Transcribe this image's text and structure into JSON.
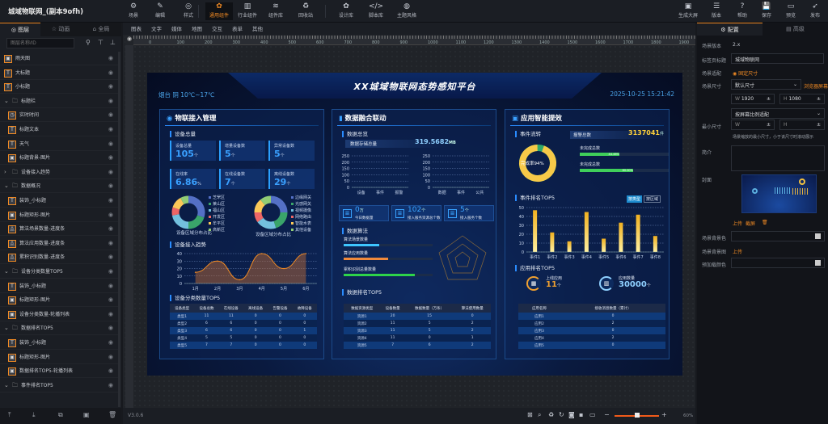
{
  "app": {
    "title": "城域物联网_(副本9ofh)"
  },
  "toolbar": {
    "left": [
      {
        "icon": "scene-icon",
        "glyph": "⚙",
        "label": "场景"
      },
      {
        "icon": "edit-icon",
        "glyph": "✎",
        "label": "编辑"
      },
      {
        "icon": "style-icon",
        "glyph": "◎",
        "label": "样式"
      }
    ],
    "middle": [
      {
        "icon": "component-icon",
        "glyph": "✿",
        "label": "通用组件",
        "active": true
      },
      {
        "icon": "industry-icon",
        "glyph": "▥",
        "label": "行业组件"
      },
      {
        "icon": "library-icon",
        "glyph": "≋",
        "label": "组件库"
      },
      {
        "icon": "recycle-icon",
        "glyph": "♻",
        "label": "回收站"
      }
    ],
    "right_group": [
      {
        "icon": "design-icon",
        "glyph": "✿",
        "label": "设计库"
      },
      {
        "icon": "script-icon",
        "glyph": "</>",
        "label": "脚本库"
      },
      {
        "icon": "theme-icon",
        "glyph": "◍",
        "label": "主题风格"
      }
    ],
    "actions": [
      {
        "icon": "generate-icon",
        "glyph": "▣",
        "label": "生成大屏"
      },
      {
        "icon": "version-icon",
        "glyph": "☰",
        "label": "版本"
      },
      {
        "icon": "help-icon",
        "glyph": "?",
        "label": "帮助"
      },
      {
        "icon": "save-icon",
        "glyph": "💾",
        "label": "保存"
      },
      {
        "icon": "preview-icon",
        "glyph": "▭",
        "label": "预览"
      },
      {
        "icon": "publish-icon",
        "glyph": "➶",
        "label": "发布"
      }
    ]
  },
  "left_panel": {
    "tabs": [
      {
        "label": "◎ 图层",
        "active": true
      },
      {
        "label": "☆ 动画"
      },
      {
        "label": "⌂ 全局"
      }
    ],
    "search_placeholder": "图层名称/ID",
    "layers": [
      {
        "label": "雨天图",
        "type": "image",
        "level": 0
      },
      {
        "label": "大标题",
        "type": "text",
        "level": 0
      },
      {
        "label": "小标题",
        "type": "text",
        "level": 0
      },
      {
        "label": "标题栏",
        "type": "folder",
        "level": 0,
        "expanded": true
      },
      {
        "label": "实时时间",
        "type": "time",
        "level": 1
      },
      {
        "label": "标题文本",
        "type": "text",
        "level": 1
      },
      {
        "label": "天气",
        "type": "text",
        "level": 1
      },
      {
        "label": "标题背景-图片",
        "type": "image",
        "level": 1
      },
      {
        "label": "设备接入趋势",
        "type": "group",
        "level": 0,
        "expanded": false
      },
      {
        "label": "数据概况",
        "type": "folder",
        "level": 0,
        "expanded": true
      },
      {
        "label": "装饰_小标题",
        "type": "text",
        "level": 1
      },
      {
        "label": "标题矩形-图片",
        "type": "image",
        "level": 1
      },
      {
        "label": "算法场景数量-进度条",
        "type": "progress",
        "level": 1
      },
      {
        "label": "算法应用数量-进度条",
        "type": "progress",
        "level": 1
      },
      {
        "label": "累积识别数量-进度条",
        "type": "progress",
        "level": 1
      },
      {
        "label": "设备分类数量TOP5",
        "type": "folder",
        "level": 0,
        "expanded": true
      },
      {
        "label": "装饰_小标题",
        "type": "text",
        "level": 1
      },
      {
        "label": "标题矩形-图片",
        "type": "image",
        "level": 1
      },
      {
        "label": "设备分类数量-轮播列表",
        "type": "image",
        "level": 1
      },
      {
        "label": "数据排名TOP5",
        "type": "folder",
        "level": 0,
        "expanded": true
      },
      {
        "label": "装饰_小标题",
        "type": "text",
        "level": 1
      },
      {
        "label": "标题矩形-图片",
        "type": "image",
        "level": 1
      },
      {
        "label": "数据排名TOP5-轮播列表",
        "type": "image",
        "level": 1
      },
      {
        "label": "事件排名TOP5",
        "type": "folder",
        "level": 0,
        "expanded": true
      }
    ]
  },
  "component_tabs": [
    "图表",
    "文字",
    "媒体",
    "地图",
    "交互",
    "表单",
    "其他"
  ],
  "ruler": {
    "ticks": [
      "0",
      "100",
      "200",
      "300",
      "400",
      "500",
      "600",
      "700",
      "800",
      "900",
      "1000",
      "1100",
      "1200",
      "1300",
      "1400",
      "1500",
      "1600",
      "1700",
      "1800",
      "1900"
    ]
  },
  "status": {
    "version": "V3.0.6",
    "zoom": "60%",
    "zoom_level": 0.5
  },
  "right_panel": {
    "tabs": [
      {
        "label": "⚙ 配置",
        "active": true
      },
      {
        "label": "▤ 高级"
      }
    ],
    "scene_version_label": "场景版本",
    "scene_version": "2.x",
    "tab_title_label": "标签页标题",
    "tab_title": "城域物联网",
    "fit_label": "场景适配",
    "fit_value": "固定尺寸",
    "size_label": "场景尺寸",
    "size_value": "默认尺寸",
    "browser_screen": "浏览器屏幕",
    "width_label": "W",
    "width": "1920",
    "height_label": "H",
    "height": "1080",
    "scale_mode": "按屏幕比例适配",
    "min_size_label": "最小尺寸",
    "min_w_label": "W",
    "min_h_label": "H",
    "min_size_hint": "场景缩放的最小尺寸，小于该尺寸时滚动展示",
    "intro_label": "简介",
    "cover_label": "封面",
    "upload": "上传",
    "screenshot": "截屏",
    "bg_color_label": "场景背景色",
    "bg_image_label": "场景背景图",
    "bg_image_upload": "上传",
    "preload_color_label": "预加载颜色"
  },
  "dashboard": {
    "title": "XX城域物联网态势感知平台",
    "weather": "烟台 阴 10℃~17℃",
    "datetime": "2025-10-25 15:21:42",
    "left": {
      "title": "物联接入管理",
      "overview": "设备总量",
      "cards": [
        {
          "label": "设备总量",
          "value": "105",
          "unit": "个"
        },
        {
          "label": "增量设备数",
          "value": "5",
          "unit": "个"
        },
        {
          "label": "异常设备数",
          "value": "5",
          "unit": "个"
        },
        {
          "label": "在线率",
          "value": "6.86",
          "unit": "%"
        },
        {
          "label": "在线设备数",
          "value": "7",
          "unit": "个"
        },
        {
          "label": "离线设备数",
          "value": "29",
          "unit": "个"
        }
      ],
      "donut1": {
        "caption": "设备区域分布占比",
        "items": [
          {
            "name": "芝罘区",
            "value": 30,
            "color": "#5470c6"
          },
          {
            "name": "莱山区",
            "value": 20,
            "color": "#3aa46a"
          },
          {
            "name": "福山区",
            "value": 22,
            "color": "#73c0de"
          },
          {
            "name": "开发区",
            "value": 8,
            "color": "#ee6666"
          },
          {
            "name": "牟平区",
            "value": 12,
            "color": "#fac858"
          },
          {
            "name": "高新区",
            "value": 8,
            "color": "#91cc75"
          }
        ]
      },
      "donut2": {
        "caption": "设备区域分布占比",
        "items": [
          {
            "name": "边缘网关",
            "value": 25,
            "color": "#5470c6"
          },
          {
            "name": "光感网关",
            "value": 20,
            "color": "#3aa46a"
          },
          {
            "name": "视频摄像",
            "value": 20,
            "color": "#73c0de"
          },
          {
            "name": "网络路由",
            "value": 10,
            "color": "#ee6666"
          },
          {
            "name": "智能水表",
            "value": 14,
            "color": "#fac858"
          },
          {
            "name": "其他设备",
            "value": 11,
            "color": "#91cc75"
          }
        ]
      },
      "trend_title": "设备接入趋势",
      "table_title": "设备分类数量TOP5",
      "table": {
        "headers": [
          "设备类型",
          "设备总数",
          "在线设备",
          "离线设备",
          "告警设备",
          "故障设备"
        ],
        "rows": [
          [
            "类型1",
            "11",
            "11",
            "0",
            "0",
            "0"
          ],
          [
            "类型2",
            "6",
            "6",
            "0",
            "0",
            "0"
          ],
          [
            "类型3",
            "6",
            "6",
            "0",
            "0",
            "1"
          ],
          [
            "类型4",
            "5",
            "5",
            "0",
            "0",
            "0"
          ],
          [
            "类型5",
            "7",
            "7",
            "0",
            "0",
            "0"
          ]
        ]
      }
    },
    "center": {
      "title": "数据融合联动",
      "overview": "数据总览",
      "storage_label": "数据存储总量",
      "storage_value": "319.5682",
      "storage_unit": "MB",
      "stats": [
        {
          "value": "0",
          "unit": "万",
          "label": "今日数据量"
        },
        {
          "value": "102",
          "unit": "个",
          "label": "接入服务资源总个数"
        },
        {
          "value": "5",
          "unit": "个",
          "label": "接入服务个数"
        }
      ],
      "algo_title": "数据算法",
      "algo": [
        {
          "label": "算法场景数量",
          "value": 40,
          "color": "#3ec6ff"
        },
        {
          "label": "算法应用数量",
          "value": 50,
          "color": "#f08a3c"
        },
        {
          "label": "累积识别总量数量",
          "value": 80,
          "color": "#2ed34a"
        }
      ],
      "table_title": "数据排名TOP5",
      "table": {
        "headers": [
          "数据资源类型",
          "设备数量",
          "数据数量（万条）",
          "算法使用数量"
        ],
        "rows": [
          [
            "资源1",
            "20",
            "15",
            "0"
          ],
          [
            "资源2",
            "11",
            "5",
            "2"
          ],
          [
            "资源3",
            "11",
            "5",
            "2"
          ],
          [
            "资源4",
            "11",
            "0",
            "1"
          ],
          [
            "资源5",
            "7",
            "6",
            "2"
          ]
        ]
      }
    },
    "right": {
      "title": "应用智能提效",
      "flow_title": "事件流转",
      "alarm_label": "报警总数",
      "alarm_value": "3137041",
      "alarm_unit": "件",
      "completion_label": "完成率94%",
      "completion": 94,
      "progress": [
        {
          "label": "未完成总数",
          "value": 44.46,
          "text": "44.46%"
        },
        {
          "label": "未完成总数",
          "value": 60.0,
          "text": "60.00%"
        }
      ],
      "rank_title": "事件排名TOP5",
      "rank_tabs": [
        {
          "label": "按类型",
          "active": true
        },
        {
          "label": "按区域"
        }
      ],
      "app_title": "应用排名TOP5",
      "app_stats": [
        {
          "label": "上线应用",
          "value": "11",
          "unit": "个",
          "color": "#f0a030"
        },
        {
          "label": "应用数量",
          "value": "30000",
          "unit": "个",
          "color": "#8fd0ff"
        }
      ],
      "table": {
        "headers": [
          "应用名称",
          "接收消息数量（累计）"
        ],
        "rows": [
          [
            "应用1",
            "0"
          ],
          [
            "应用2",
            "2"
          ],
          [
            "应用3",
            "0"
          ],
          [
            "应用4",
            "2"
          ],
          [
            "应用5",
            "0"
          ]
        ]
      }
    }
  },
  "chart_data": [
    {
      "type": "area",
      "title": "设备接入趋势",
      "categories": [
        "1月",
        "2月",
        "3月",
        "4月",
        "5月",
        "6月"
      ],
      "values": [
        15,
        30,
        5,
        40,
        20,
        40
      ],
      "ylim": [
        0,
        40
      ],
      "yticks": [
        "0",
        "10",
        "20",
        "30",
        "40"
      ],
      "grid": true
    },
    {
      "type": "bar",
      "title": "数据总览",
      "categories": [
        "设备",
        "事件",
        "报警"
      ],
      "values": [
        0,
        0,
        0
      ],
      "ylim": [
        0,
        250
      ],
      "yticks": [
        "0",
        "50",
        "100",
        "150",
        "200",
        "250"
      ],
      "grid": true
    },
    {
      "type": "bar",
      "title": "数据总览",
      "categories": [
        "数据",
        "事件",
        "公共"
      ],
      "values": [
        0,
        0,
        0
      ],
      "ylim": [
        0,
        250
      ],
      "yticks": [
        "0",
        "50",
        "100",
        "150",
        "200",
        "250"
      ],
      "grid": true
    },
    {
      "type": "bar",
      "title": "事件排名TOP5",
      "categories": [
        "事件1",
        "事件2",
        "事件3",
        "事件4",
        "事件5",
        "事件6",
        "事件7",
        "事件8"
      ],
      "values": [
        47,
        22,
        12,
        45,
        15,
        33,
        42,
        18
      ],
      "ylim": [
        0,
        50
      ],
      "yticks": [
        "0",
        "10",
        "20",
        "30",
        "40",
        "50"
      ],
      "grid": true
    }
  ]
}
